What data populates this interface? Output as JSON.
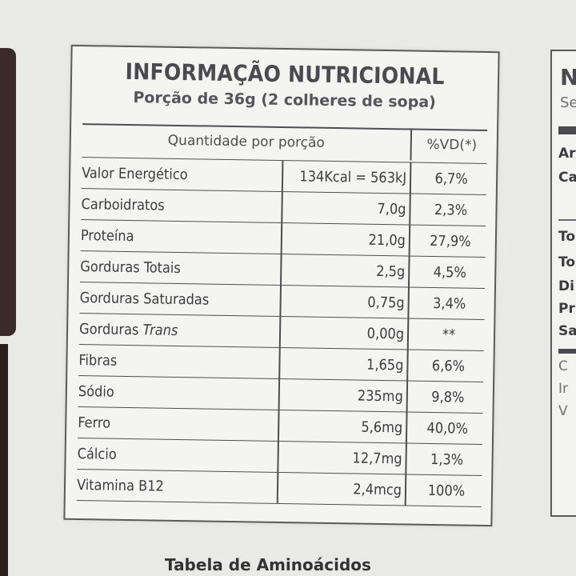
{
  "label": {
    "title": "INFORMAÇÃO NUTRICIONAL",
    "subtitle": "Porção de 36g (2 colheres de sopa)",
    "col_quantity": "Quantidade por porção",
    "col_dv": "%VD(*)",
    "rows": [
      {
        "name": "Valor Energético",
        "amount": "134Kcal = 563kJ",
        "dv": "6,7%"
      },
      {
        "name": "Carboidratos",
        "amount": "7,0g",
        "dv": "2,3%"
      },
      {
        "name": "Proteína",
        "amount": "21,0g",
        "dv": "27,9%"
      },
      {
        "name": "Gorduras Totais",
        "amount": "2,5g",
        "dv": "4,5%"
      },
      {
        "name": "Gorduras Saturadas",
        "amount": "0,75g",
        "dv": "3,4%"
      },
      {
        "name_prefix": "Gorduras ",
        "name_italic": "Trans",
        "amount": "0,00g",
        "dv": "**"
      },
      {
        "name": "Fibras",
        "amount": "1,65g",
        "dv": "6,6%"
      },
      {
        "name": "Sódio",
        "amount": "235mg",
        "dv": "9,8%"
      },
      {
        "name": "Ferro",
        "amount": "5,6mg",
        "dv": "40,0%"
      },
      {
        "name": "Cálcio",
        "amount": "12,7mg",
        "dv": "1,3%"
      },
      {
        "name": "Vitamina B12",
        "amount": "2,4mcg",
        "dv": "100%"
      }
    ]
  },
  "footer": {
    "text": "Tabela de Aminoácidos"
  },
  "right_panel": {
    "title_partial": "N",
    "subtitle_partial": "Se",
    "fragments": [
      "Ar",
      "Ca",
      "To",
      "To",
      "Di",
      "Pr",
      "Sa",
      "C",
      "Ir",
      "V"
    ]
  }
}
